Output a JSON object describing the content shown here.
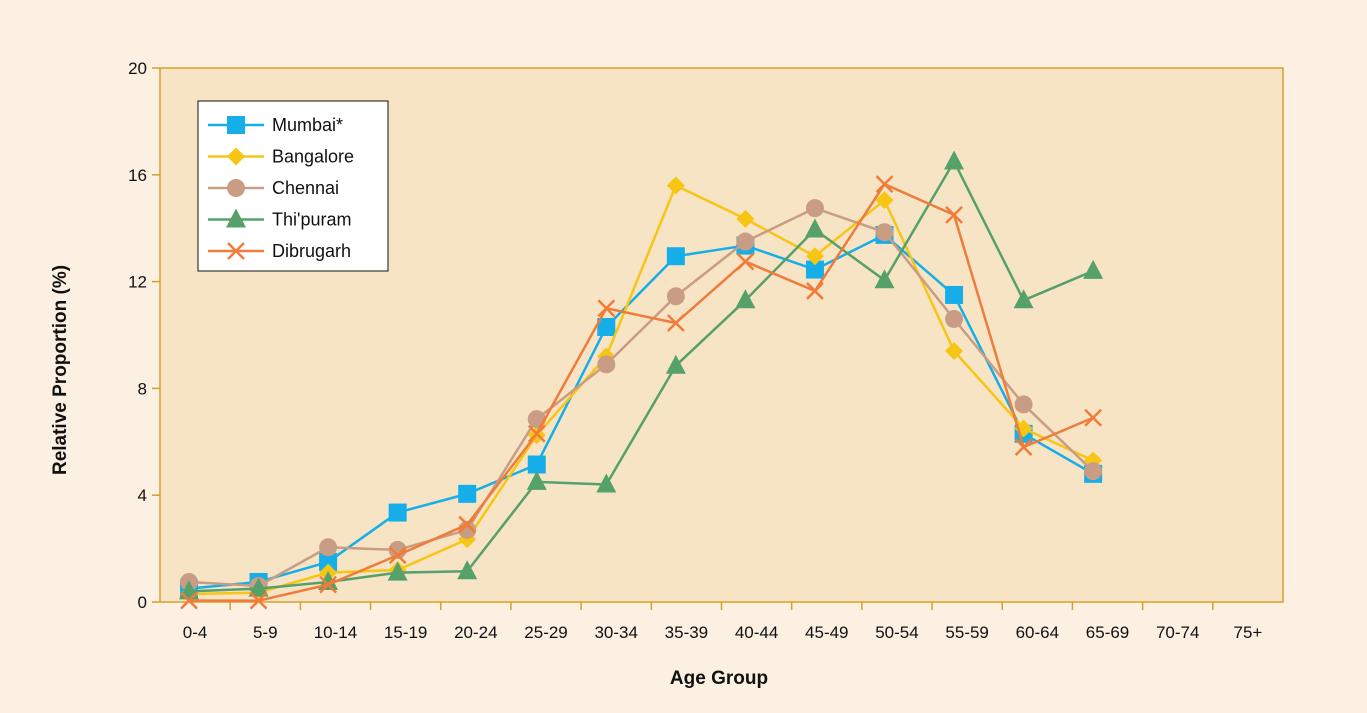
{
  "chart_data": {
    "type": "line",
    "xlabel": "Age Group",
    "ylabel": "Relative Proportion (%)",
    "ylim": [
      0,
      20
    ],
    "yticks": [
      "0",
      "4",
      "8",
      "12",
      "16",
      "20"
    ],
    "grid": false,
    "legend_position": "top-left",
    "background_color": "#f7e4c5",
    "categories": [
      "0-4",
      "5-9",
      "10-14",
      "15-19",
      "20-24",
      "25-29",
      "30-34",
      "35-39",
      "40-44",
      "45-49",
      "50-54",
      "55-59",
      "60-64",
      "65-69",
      "70-74",
      "75+"
    ],
    "series": [
      {
        "name": "Mumbai*",
        "color": "#16aee8",
        "marker": "square",
        "x": [
          0,
          1,
          2,
          3,
          4,
          5,
          6,
          7,
          8,
          9,
          10,
          11,
          12,
          13,
          14
        ],
        "values": [
          0.5,
          0.75,
          1.5,
          3.35,
          4.05,
          5.15,
          10.3,
          12.95,
          13.35,
          12.45,
          13.75,
          11.5,
          6.3,
          4.8,
          null
        ]
      },
      {
        "name": "Bangalore",
        "color": "#f7c514",
        "marker": "diamond",
        "x": [
          0,
          1,
          2,
          3,
          4,
          5,
          6,
          7,
          8,
          9,
          10,
          11,
          12,
          13,
          14
        ],
        "values": [
          0.3,
          0.35,
          1.1,
          1.2,
          2.35,
          6.25,
          9.2,
          15.6,
          14.35,
          12.95,
          15.05,
          9.4,
          6.5,
          5.3,
          null
        ]
      },
      {
        "name": "Chennai",
        "color": "#c99c84",
        "marker": "circle",
        "x": [
          0,
          1,
          2,
          3,
          4,
          5,
          6,
          7,
          8,
          9,
          10,
          11,
          12,
          13,
          14
        ],
        "values": [
          0.75,
          0.6,
          2.05,
          1.95,
          2.7,
          6.85,
          8.9,
          11.45,
          13.5,
          14.75,
          13.85,
          10.6,
          7.4,
          4.9,
          null
        ]
      },
      {
        "name": "Thi'puram",
        "color": "#56a06a",
        "marker": "triangle",
        "x": [
          0,
          1,
          2,
          3,
          4,
          5,
          6,
          7,
          8,
          9,
          10,
          11,
          12,
          13,
          14
        ],
        "values": [
          0.4,
          0.5,
          0.75,
          1.1,
          1.15,
          4.5,
          4.4,
          8.85,
          11.3,
          13.95,
          12.05,
          16.5,
          11.3,
          12.4,
          null
        ]
      },
      {
        "name": "Dibrugarh",
        "color": "#ef7c3a",
        "marker": "x",
        "x": [
          0,
          1,
          2,
          3,
          4,
          5,
          6,
          7,
          8,
          9,
          10,
          11,
          12,
          13,
          14
        ],
        "values": [
          0.05,
          0.05,
          0.65,
          1.75,
          2.9,
          6.3,
          11.0,
          10.45,
          12.75,
          11.65,
          15.65,
          14.5,
          5.8,
          6.9,
          null
        ]
      }
    ]
  }
}
